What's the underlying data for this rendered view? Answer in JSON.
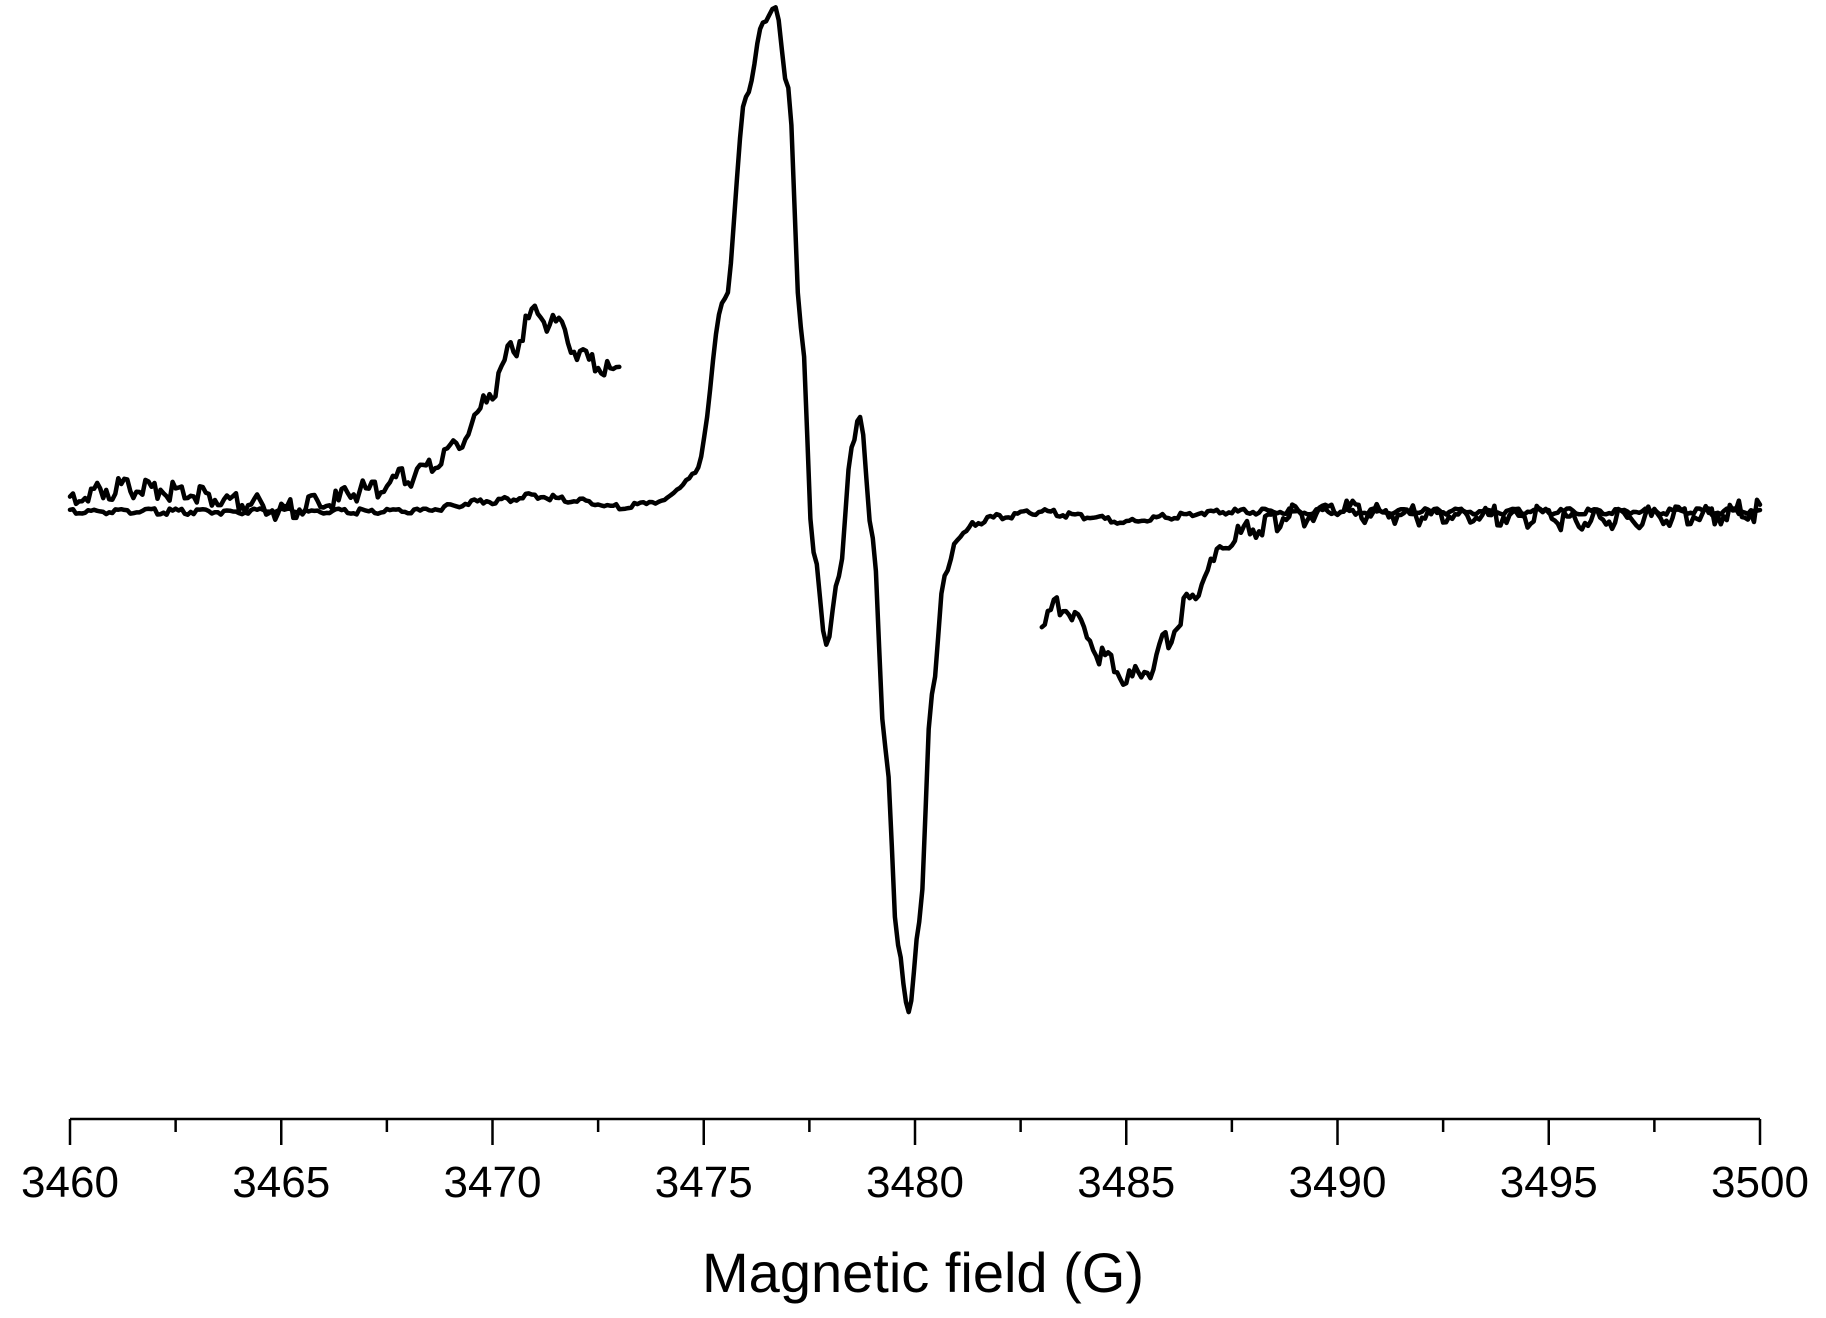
{
  "chart_data": {
    "type": "line",
    "xlabel": "Magnetic field (G)",
    "ylabel": "",
    "xlim": [
      3460,
      3500
    ],
    "ylim": [
      -1.0,
      1.0
    ],
    "grid": false,
    "y_axis_visible": false,
    "line_color": "#000000",
    "x_tick_labels": [
      "3460",
      "3465",
      "3470",
      "3475",
      "3480",
      "3485",
      "3490",
      "3495",
      "3500"
    ],
    "series": [
      {
        "x": [
          3460.0,
          3462.0,
          3464.0,
          3466.0,
          3468.0,
          3470.0,
          3471.0,
          3472.0,
          3473.0,
          3474.0,
          3474.8,
          3475.5,
          3476.0,
          3476.4,
          3476.7,
          3477.0,
          3477.3,
          3477.6,
          3477.9,
          3478.2,
          3478.5,
          3478.7,
          3479.0,
          3479.3,
          3479.6,
          3479.85,
          3480.1,
          3480.4,
          3480.7,
          3481.0,
          3481.5,
          3482.0,
          3483.0,
          3484.0,
          3485.0,
          3486.0,
          3487.0,
          3488.0,
          3490.0,
          3492.0,
          3494.0,
          3496.0,
          3498.0,
          3500.0
        ],
        "y": [
          0.0,
          0.0,
          0.0,
          0.0,
          0.0,
          0.02,
          0.03,
          0.02,
          0.01,
          0.02,
          0.07,
          0.4,
          0.78,
          0.92,
          0.95,
          0.8,
          0.35,
          -0.08,
          -0.25,
          -0.12,
          0.12,
          0.18,
          -0.05,
          -0.45,
          -0.82,
          -0.95,
          -0.78,
          -0.35,
          -0.12,
          -0.05,
          -0.02,
          -0.01,
          0.0,
          -0.01,
          -0.02,
          -0.01,
          0.0,
          0.0,
          0.0,
          0.0,
          0.0,
          0.0,
          0.0,
          0.0
        ]
      },
      {
        "x": [
          3460.0,
          3461.0,
          3462.0,
          3463.0,
          3464.0,
          3465.0,
          3466.0,
          3467.0,
          3468.0,
          3469.0,
          3469.5,
          3470.0,
          3470.5,
          3471.0,
          3471.5,
          3472.0,
          3472.5,
          3473.0
        ],
        "y": [
          0.03,
          0.05,
          0.05,
          0.04,
          0.03,
          0.01,
          0.02,
          0.05,
          0.07,
          0.12,
          0.17,
          0.24,
          0.32,
          0.38,
          0.36,
          0.31,
          0.28,
          0.27
        ]
      },
      {
        "x": [
          3483.0,
          3483.5,
          3484.0,
          3484.5,
          3485.0,
          3485.5,
          3486.0,
          3486.5,
          3487.0,
          3487.5,
          3488.0,
          3489.0,
          3490.0,
          3492.0,
          3494.0,
          3496.0,
          3498.0,
          3500.0
        ],
        "y": [
          -0.19,
          -0.17,
          -0.21,
          -0.27,
          -0.31,
          -0.29,
          -0.23,
          -0.16,
          -0.09,
          -0.04,
          -0.02,
          0.0,
          0.01,
          0.0,
          0.0,
          -0.01,
          0.0,
          0.01
        ]
      }
    ]
  }
}
